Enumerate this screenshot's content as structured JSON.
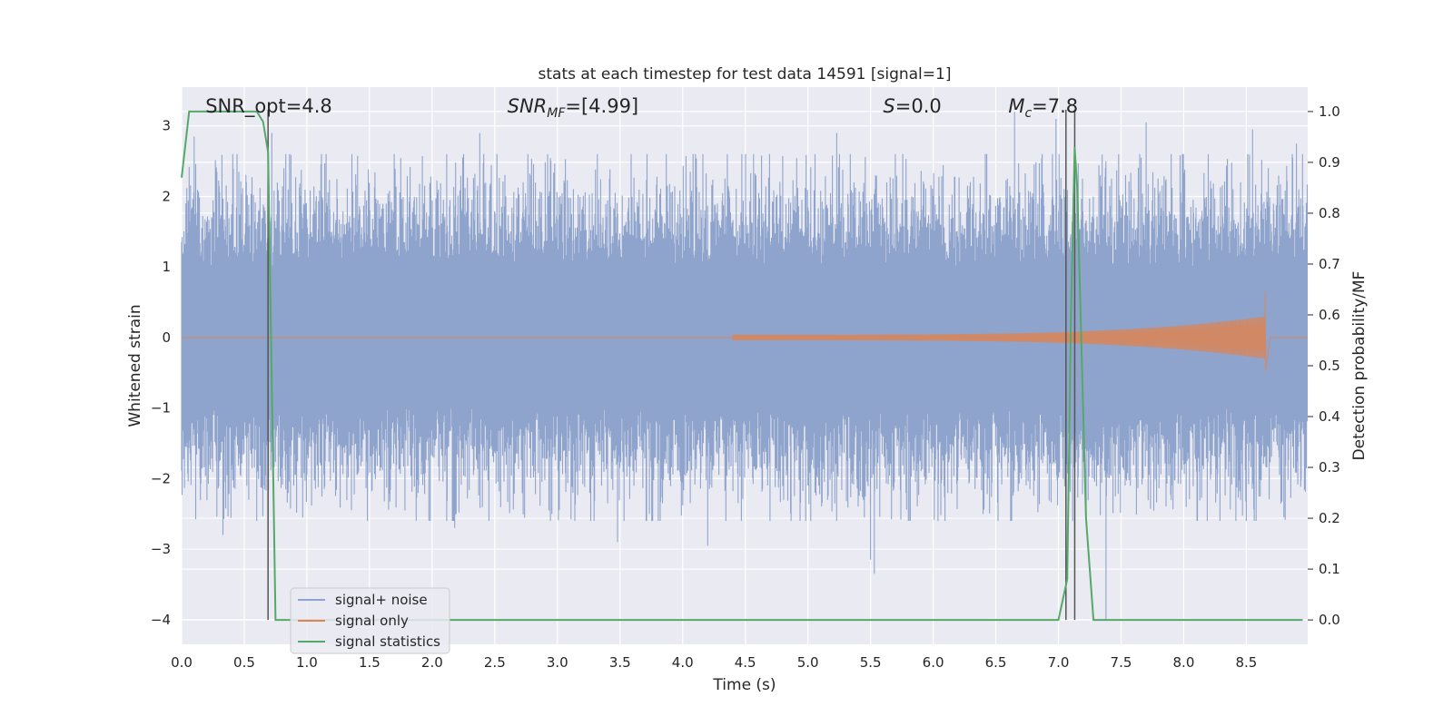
{
  "chart_data": {
    "type": "line",
    "title": "stats at each timestep for test data 14591 [signal=1]",
    "xlabel": "Time (s)",
    "ylabel": "Whitened strain",
    "ylabel_right": "Detection probability/MF",
    "xlim": [
      0.0,
      8.99
    ],
    "ylim": [
      -4.35,
      3.55
    ],
    "ylim_right": [
      -0.048,
      1.048
    ],
    "x_ticks": [
      "0.0",
      "0.5",
      "1.0",
      "1.5",
      "2.0",
      "2.5",
      "3.0",
      "3.5",
      "4.0",
      "4.5",
      "5.0",
      "5.5",
      "6.0",
      "6.5",
      "7.0",
      "7.5",
      "8.0",
      "8.5"
    ],
    "y_ticks": [
      "3",
      "2",
      "1",
      "0",
      "−1",
      "−2",
      "−3",
      "−4"
    ],
    "y_tick_values": [
      3,
      2,
      1,
      0,
      -1,
      -2,
      -3,
      -4
    ],
    "y_right_ticks": [
      "1.0",
      "0.9",
      "0.8",
      "0.7",
      "0.6",
      "0.5",
      "0.4",
      "0.3",
      "0.2",
      "0.1",
      "0.0"
    ],
    "y_right_tick_values": [
      1.0,
      0.9,
      0.8,
      0.7,
      0.6,
      0.5,
      0.4,
      0.3,
      0.2,
      0.1,
      0.0
    ],
    "grid": true,
    "legend_position": "lower-left",
    "annotations": [
      {
        "text": "SNR_opt=4.8",
        "x": 0.19
      },
      {
        "text": "SNR",
        "sub": "MF",
        "rest": "=[4.99]",
        "x": 2.6
      },
      {
        "text": "S",
        "rest": "=0.0",
        "x": 5.6
      },
      {
        "text": "M",
        "sub": "c",
        "rest": "=7.8",
        "x": 6.6
      }
    ],
    "series": [
      {
        "name": "signal+ noise",
        "color": "#8fa4cc",
        "axis": "left",
        "description_kind": "noise",
        "band_min": -2.0,
        "band_max": 2.0,
        "peaks": [
          {
            "x": 0.1,
            "y": 2.85
          },
          {
            "x": 0.72,
            "y": 2.9
          },
          {
            "x": 2.38,
            "y": 2.9
          },
          {
            "x": 5.23,
            "y": 2.9
          },
          {
            "x": 6.65,
            "y": 3.2
          },
          {
            "x": 6.98,
            "y": 3.1
          },
          {
            "x": 7.7,
            "y": 3.05
          },
          {
            "x": 8.55,
            "y": 2.95
          },
          {
            "x": 8.9,
            "y": 2.75
          },
          {
            "x": 0.33,
            "y": -2.8
          },
          {
            "x": 2.18,
            "y": -2.7
          },
          {
            "x": 3.48,
            "y": -2.9
          },
          {
            "x": 4.2,
            "y": -2.95
          },
          {
            "x": 5.5,
            "y": -3.15
          },
          {
            "x": 5.53,
            "y": -3.35
          },
          {
            "x": 7.38,
            "y": -4.0
          },
          {
            "x": 8.5,
            "y": -2.6
          },
          {
            "x": 8.8,
            "y": -2.55
          }
        ]
      },
      {
        "name": "signal only",
        "color": "#dd8452",
        "axis": "left",
        "chirp_start": 4.4,
        "merger_time": 8.65,
        "merger_amp_pos": 0.65,
        "merger_amp_neg": -0.47
      },
      {
        "name": "signal statistics",
        "color": "#55a868",
        "axis": "right",
        "x": [
          0.0,
          0.06,
          0.1,
          0.6,
          0.65,
          0.69,
          0.75,
          6.95,
          7.0,
          7.07,
          7.1,
          7.13,
          7.15,
          7.22,
          7.28,
          7.35,
          7.9,
          8.0,
          8.95
        ],
        "values": [
          0.87,
          1.0,
          1.0,
          1.0,
          0.98,
          0.92,
          0.0,
          0.0,
          0.0,
          0.08,
          0.6,
          0.93,
          0.85,
          0.2,
          0.0,
          0.0,
          0.0,
          0.0,
          0.0
        ]
      }
    ],
    "vertical_lines": [
      0.69,
      7.06,
      7.13
    ],
    "vertical_line_color": "#555555"
  }
}
